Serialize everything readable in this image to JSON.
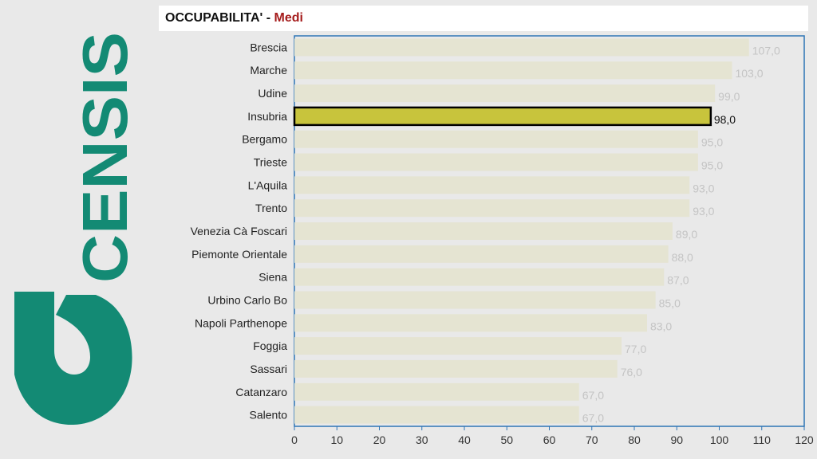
{
  "logo": {
    "text": "CENSIS",
    "color": "#138a74"
  },
  "header": {
    "title": "OCCUPABILITA'",
    "separator": " - ",
    "subtitle": "Medi",
    "subtitle_color": "#a51c1c"
  },
  "chart_data": {
    "type": "bar",
    "orientation": "horizontal",
    "title": "OCCUPABILITA' - Medi",
    "xlabel": "",
    "ylabel": "",
    "xlim": [
      0,
      120
    ],
    "xticks": [
      "0",
      "10",
      "20",
      "30",
      "40",
      "50",
      "60",
      "70",
      "80",
      "90",
      "100",
      "110",
      "120"
    ],
    "grid": false,
    "categories": [
      "Brescia",
      "Marche",
      "Udine",
      "Insubria",
      "Bergamo",
      "Trieste",
      "L'Aquila",
      "Trento",
      "Venezia Cà Foscari",
      "Piemonte Orientale",
      "Siena",
      "Urbino Carlo Bo",
      "Napoli Parthenope",
      "Foggia",
      "Sassari",
      "Catanzaro",
      "Salento"
    ],
    "values": [
      107,
      103,
      99,
      98,
      95,
      95,
      93,
      93,
      89,
      88,
      87,
      85,
      83,
      77,
      76,
      67,
      67
    ],
    "value_labels": [
      "107,0",
      "103,0",
      "99,0",
      "98,0",
      "95,0",
      "95,0",
      "93,0",
      "93,0",
      "89,0",
      "88,0",
      "87,0",
      "85,0",
      "83,0",
      "77,0",
      "76,0",
      "67,0",
      "67,0"
    ],
    "highlight": "Insubria",
    "colors": {
      "bar": "#e5e4d2",
      "highlight": "#c8c43c",
      "axis": "#2e75b6",
      "label_muted": "#c4c4c4",
      "label_highlight": "#111111",
      "category_text": "#222222",
      "tick_text": "#333333"
    }
  }
}
